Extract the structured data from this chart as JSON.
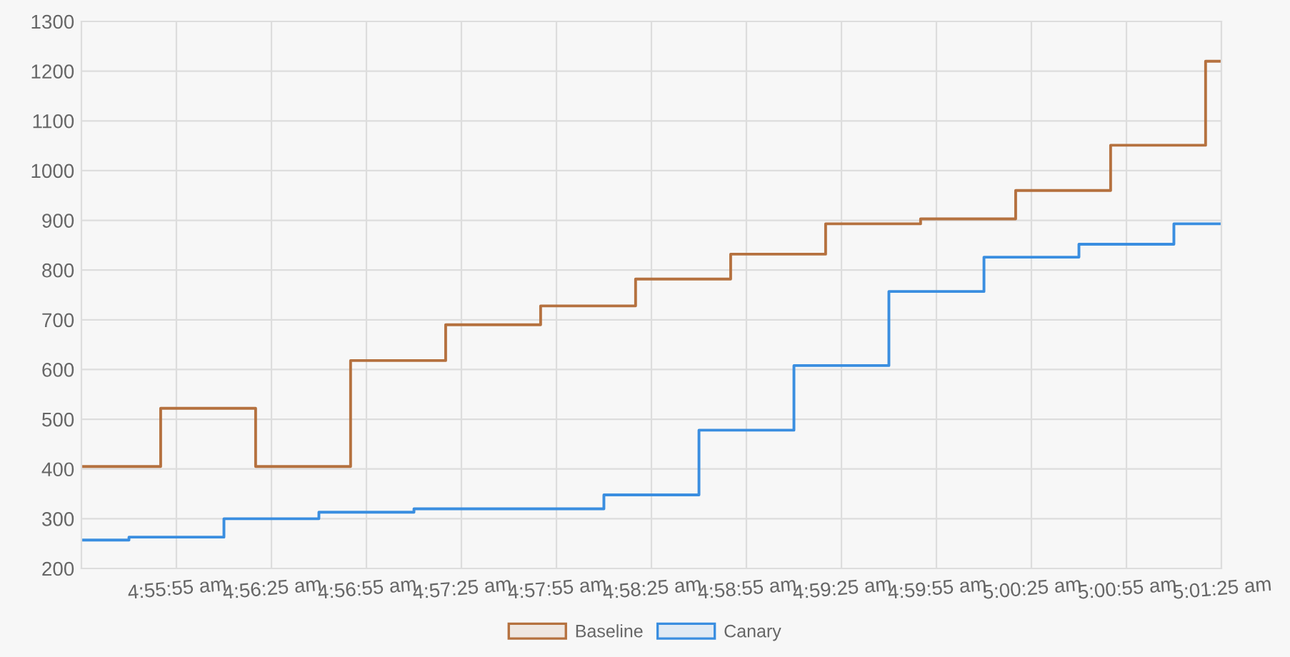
{
  "chart_data": {
    "type": "step",
    "series": [
      {
        "name": "Baseline",
        "color": "#b5713f",
        "x": [
          4.92361,
          4.93056,
          4.93889,
          4.94722,
          4.95556,
          4.96389,
          4.97222,
          4.98056,
          4.98889,
          4.99722,
          5.00556,
          5.01389,
          5.02222,
          5.02361
        ],
        "values": [
          405,
          522,
          405,
          618,
          690,
          728,
          782,
          832,
          893,
          903,
          960,
          1051,
          1220,
          1220
        ]
      },
      {
        "name": "Canary",
        "color": "#3a8ee0",
        "x": [
          4.92361,
          4.92778,
          4.93611,
          4.94444,
          4.95278,
          4.96111,
          4.96944,
          4.97778,
          4.98611,
          4.99444,
          5.00278,
          5.01111,
          5.01944,
          5.02361
        ],
        "values": [
          257,
          263,
          300,
          313,
          320,
          320,
          348,
          478,
          608,
          757,
          826,
          852,
          893,
          893
        ]
      }
    ],
    "xlim": [
      4.92361,
      5.02361
    ],
    "xticks": [
      {
        "value": 4.93194,
        "label": "4:55:55 am"
      },
      {
        "value": 4.94028,
        "label": "4:56:25 am"
      },
      {
        "value": 4.94861,
        "label": "4:56:55 am"
      },
      {
        "value": 4.95694,
        "label": "4:57:25 am"
      },
      {
        "value": 4.96528,
        "label": "4:57:55 am"
      },
      {
        "value": 4.97361,
        "label": "4:58:25 am"
      },
      {
        "value": 4.98194,
        "label": "4:58:55 am"
      },
      {
        "value": 4.99028,
        "label": "4:59:25 am"
      },
      {
        "value": 4.99861,
        "label": "4:59:55 am"
      },
      {
        "value": 5.00694,
        "label": "5:00:25 am"
      },
      {
        "value": 5.01528,
        "label": "5:00:55 am"
      },
      {
        "value": 5.02361,
        "label": "5:01:25 am"
      }
    ],
    "ylim": [
      200,
      1300
    ],
    "yticks": [
      200,
      300,
      400,
      500,
      600,
      700,
      800,
      900,
      1000,
      1100,
      1200,
      1300
    ],
    "grid": true,
    "legend": "bottom",
    "line_style": "solid"
  }
}
